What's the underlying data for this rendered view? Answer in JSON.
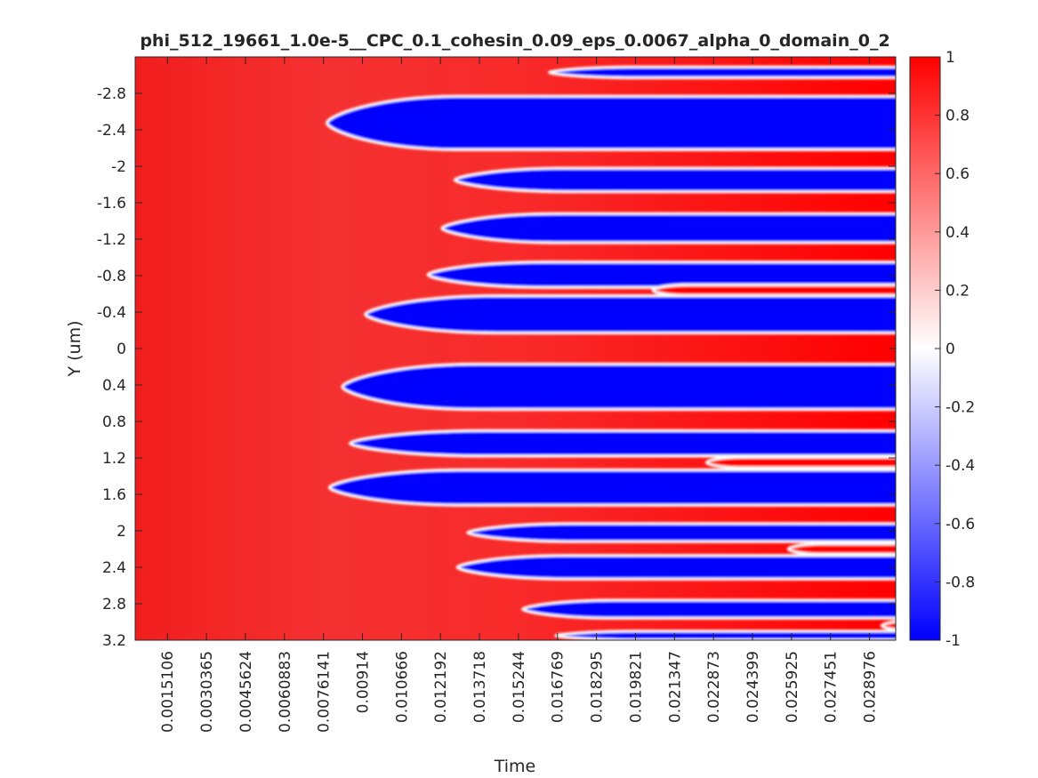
{
  "chart_data": {
    "type": "heatmap",
    "title": "phi_512_19661_1.0e-5__CPC_0.1_cohesin_0.09_eps_0.0067_alpha_0_domain_0_2",
    "xlabel": "Time",
    "ylabel": "Y (um)",
    "x_ticks": [
      "0.0015106",
      "0.0030365",
      "0.0045624",
      "0.0060883",
      "0.0076141",
      "0.00914",
      "0.010666",
      "0.012192",
      "0.013718",
      "0.015244",
      "0.016769",
      "0.018295",
      "0.019821",
      "0.021347",
      "0.022873",
      "0.024399",
      "0.025925",
      "0.027451",
      "0.028976"
    ],
    "x_tick_values": [
      0.0015106,
      0.0030365,
      0.0045624,
      0.0060883,
      0.0076141,
      0.00914,
      0.010666,
      0.012192,
      0.013718,
      0.015244,
      0.016769,
      0.018295,
      0.019821,
      0.021347,
      0.022873,
      0.024399,
      0.025925,
      0.027451,
      0.028976
    ],
    "xlim": [
      0.00025,
      0.03
    ],
    "y_ticks": [
      "-2.8",
      "-2.4",
      "-2",
      "-1.6",
      "-1.2",
      "-0.8",
      "-0.4",
      "0",
      "0.4",
      "0.8",
      "1.2",
      "1.6",
      "2",
      "2.4",
      "2.8",
      "3.2"
    ],
    "y_tick_values": [
      -2.8,
      -2.4,
      -2.0,
      -1.6,
      -1.2,
      -0.8,
      -0.4,
      0,
      0.4,
      0.8,
      1.2,
      1.6,
      2.0,
      2.4,
      2.8,
      3.2
    ],
    "ylim": [
      -3.2,
      3.2
    ],
    "y_reversed": true,
    "colorbar": {
      "ticks": [
        "1",
        "0.8",
        "0.6",
        "0.4",
        "0.2",
        "0",
        "-0.2",
        "-0.4",
        "-0.6",
        "-0.8",
        "-1"
      ],
      "tick_values": [
        1,
        0.8,
        0.6,
        0.4,
        0.2,
        0,
        -0.2,
        -0.4,
        -0.6,
        -0.8,
        -1
      ],
      "range": [
        -1,
        1
      ],
      "colormap": [
        "#0000ff",
        "#ffffff",
        "#ff0000"
      ]
    },
    "background_value": 1,
    "blue_fingers": [
      {
        "y_start": -3.09,
        "y_end": -2.97,
        "x_tip": 0.01645
      },
      {
        "y_start": -2.77,
        "y_end": -2.18,
        "x_tip": 0.00775
      },
      {
        "y_start": -1.98,
        "y_end": -1.72,
        "x_tip": 0.01275
      },
      {
        "y_start": -1.48,
        "y_end": -1.16,
        "x_tip": 0.01225
      },
      {
        "y_start": -0.95,
        "y_end": -0.67,
        "x_tip": 0.0117
      },
      {
        "y_start": -0.58,
        "y_end": -0.17,
        "x_tip": 0.00925
      },
      {
        "y_start": 0.17,
        "y_end": 0.67,
        "x_tip": 0.00835
      },
      {
        "y_start": 0.9,
        "y_end": 1.18,
        "x_tip": 0.00865
      },
      {
        "y_start": 1.33,
        "y_end": 1.72,
        "x_tip": 0.00785
      },
      {
        "y_start": 1.92,
        "y_end": 2.12,
        "x_tip": 0.01325
      },
      {
        "y_start": 2.27,
        "y_end": 2.53,
        "x_tip": 0.01285
      },
      {
        "y_start": 2.76,
        "y_end": 2.96,
        "x_tip": 0.0154
      },
      {
        "y_start": 3.1,
        "y_end": 3.2,
        "x_tip": 0.0167
      }
    ],
    "red_fingers": [
      {
        "y": -0.64,
        "x_tip": 0.0205
      },
      {
        "y": 1.25,
        "x_tip": 0.0226
      },
      {
        "y": 2.2,
        "x_tip": 0.0258
      },
      {
        "y": 3.04,
        "x_tip": 0.02945
      }
    ]
  }
}
